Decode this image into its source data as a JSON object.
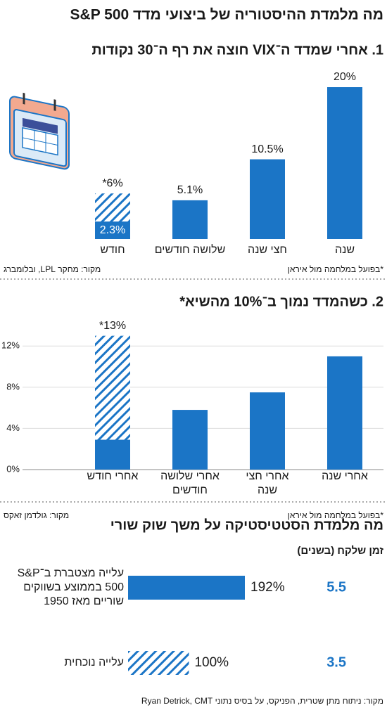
{
  "title": "מה מלמדת ההיסטוריה של ביצועי מדד S&P 500",
  "chart_data": [
    {
      "type": "bar",
      "title": "1. אחרי שמדד ה־VIX חוצה את רף ה־30 נקודות",
      "categories": [
        "שנה",
        "חצי שנה",
        "שלושה חודשים",
        "חודש"
      ],
      "values": [
        20,
        10.5,
        5.1,
        2.3
      ],
      "value_labels": [
        "20%",
        "10.5%",
        "5.1%",
        "2.3%"
      ],
      "hatched_values": [
        null,
        null,
        null,
        6
      ],
      "hatched_value_labels": [
        null,
        null,
        null,
        "*6%"
      ],
      "color": "#1b75c6",
      "source": "מקור: מחקר LPL, ובלומברג",
      "note": "*בפועל במלחמה מול איראן"
    },
    {
      "type": "bar",
      "title": "2. כשהמדד נמוך ב־10% מהשיא*",
      "categories": [
        "אחרי שנה",
        "אחרי חצי\nשנה",
        "אחרי שלושה\nחודשים",
        "אחרי חודש"
      ],
      "values": [
        11,
        7.5,
        5.8,
        2.9
      ],
      "hatched_values": [
        null,
        null,
        null,
        13
      ],
      "hatched_value_labels": [
        null,
        null,
        null,
        "*13%"
      ],
      "ylim": [
        0,
        14
      ],
      "yticks": [
        {
          "value": 0,
          "label": "0%"
        },
        {
          "value": 4,
          "label": "4%"
        },
        {
          "value": 8,
          "label": "8%"
        },
        {
          "value": 12,
          "label": "12%"
        }
      ],
      "grid": true,
      "color": "#1b75c6",
      "source": "מקור: גולדמן זאקס",
      "note": "*בפועל במלחמה מול איראן"
    },
    {
      "type": "hbar",
      "title": "מה מלמדת הסטטיסטיקה על משך שוק שורי",
      "years_title": "זמן שלקח (בשנים)",
      "categories": [
        "עלייה מצטברת ב־S&P\n500 בממוצע בשווקים\nשוריים מאז 1950",
        "עלייה נוכחית"
      ],
      "values": [
        192,
        100
      ],
      "value_labels": [
        "192%",
        "100%"
      ],
      "hatched": [
        false,
        true
      ],
      "years": [
        5.5,
        3.5
      ],
      "color": "#1b75c6",
      "source": "מקור: ניתוח מתן שטרית, הפניקס, על בסיס נתוני Ryan Detrick, CMT"
    }
  ]
}
